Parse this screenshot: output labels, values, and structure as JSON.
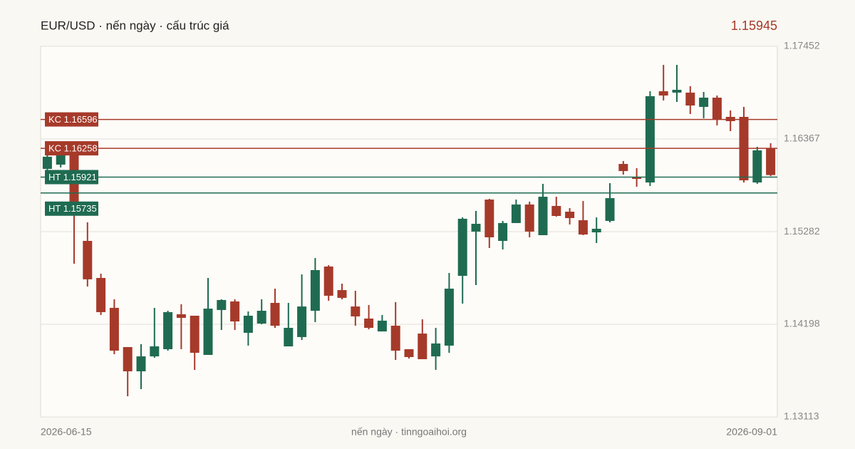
{
  "chart_data": {
    "type": "candlestick",
    "title": "EUR/USD · nến ngày · cấu trúc giá",
    "last_price": 1.15945,
    "last_price_color": "#a63a2a",
    "source": "nến ngày · tinngoaihoi.org",
    "categories": [
      "2026-06-15",
      null,
      null,
      null,
      null,
      null,
      null,
      null,
      null,
      null,
      null,
      null,
      null,
      null,
      null,
      null,
      null,
      null,
      null,
      null,
      null,
      null,
      null,
      null,
      null,
      null,
      null,
      null,
      null,
      null,
      null,
      null,
      null,
      null,
      null,
      null,
      null,
      null,
      null,
      null,
      null,
      null,
      null,
      null,
      null,
      null,
      null,
      null,
      null,
      null,
      null,
      null,
      null,
      null,
      "2026-09-01"
    ],
    "open": [
      1.16017,
      1.16067,
      1.16267,
      1.15174,
      1.1474,
      1.1439,
      1.13931,
      1.13647,
      1.13822,
      1.13906,
      1.14315,
      1.14298,
      1.13839,
      1.14365,
      1.14465,
      1.14098,
      1.14206,
      1.14448,
      1.13939,
      1.14048,
      1.14356,
      1.14874,
      1.14598,
      1.14406,
      1.14265,
      1.14114,
      1.14181,
      1.13906,
      1.14089,
      1.13822,
      1.13948,
      1.14765,
      1.15283,
      1.15658,
      1.15174,
      1.15383,
      1.156,
      1.15241,
      1.15583,
      1.15516,
      1.15416,
      1.15274,
      1.15408,
      1.16075,
      1.15925,
      1.15858,
      1.16926,
      1.1691,
      1.1691,
      1.16743,
      1.16851,
      1.16626,
      1.16626,
      1.15858,
      1.16259
    ],
    "high": [
      1.162,
      1.16326,
      1.16326,
      1.15391,
      1.1479,
      1.1449,
      1.13931,
      1.13964,
      1.1439,
      1.14356,
      1.14432,
      1.14298,
      1.1474,
      1.1449,
      1.1449,
      1.14348,
      1.1449,
      1.14615,
      1.14448,
      1.14782,
      1.14974,
      1.1489,
      1.14673,
      1.1459,
      1.14423,
      1.14306,
      1.14457,
      1.13906,
      1.14256,
      1.14156,
      1.14799,
      1.15449,
      1.15525,
      1.15666,
      1.15408,
      1.15658,
      1.15633,
      1.15842,
      1.15691,
      1.15558,
      1.15641,
      1.15449,
      1.1585,
      1.16109,
      1.16025,
      1.16926,
      1.17235,
      1.17235,
      1.16985,
      1.16918,
      1.16876,
      1.16701,
      1.16743,
      1.16276,
      1.16317
    ],
    "low": [
      1.15992,
      1.16034,
      1.14907,
      1.1464,
      1.14306,
      1.13847,
      1.13355,
      1.13439,
      1.13806,
      1.13889,
      1.13906,
      1.13664,
      1.13839,
      1.14131,
      1.14131,
      1.13948,
      1.14198,
      1.14156,
      1.13939,
      1.14014,
      1.14223,
      1.14473,
      1.1449,
      1.14181,
      1.14139,
      1.14114,
      1.13781,
      1.13797,
      1.13789,
      1.13664,
      1.13864,
      1.1444,
      1.14657,
      1.15091,
      1.15074,
      1.15383,
      1.15216,
      1.15241,
      1.15458,
      1.15366,
      1.15241,
      1.15149,
      1.15391,
      1.1595,
      1.15808,
      1.15817,
      1.16818,
      1.16801,
      1.16659,
      1.16609,
      1.16526,
      1.16459,
      1.15858,
      1.15842,
      1.15933
    ],
    "close": [
      1.16159,
      1.16267,
      1.15508,
      1.14724,
      1.1434,
      1.13889,
      1.13647,
      1.13822,
      1.13939,
      1.1434,
      1.14273,
      1.13864,
      1.14381,
      1.14482,
      1.14231,
      1.14298,
      1.14356,
      1.14181,
      1.14156,
      1.14406,
      1.14832,
      1.14532,
      1.14507,
      1.1429,
      1.14156,
      1.1424,
      1.13889,
      1.13814,
      1.13789,
      1.13973,
      1.14615,
      1.15433,
      1.15374,
      1.15216,
      1.15383,
      1.156,
      1.15283,
      1.15691,
      1.15466,
      1.15441,
      1.15249,
      1.15316,
      1.15675,
      1.15992,
      1.159,
      1.16868,
      1.16876,
      1.16943,
      1.16759,
      1.16851,
      1.16601,
      1.16576,
      1.15883,
      1.16234,
      1.15945
    ],
    "up_color": "#1f6b51",
    "down_color": "#a63a2a",
    "levels": [
      {
        "label": "KC 1.16596",
        "value": 1.16596,
        "color": "#a63a2a"
      },
      {
        "label": "KC 1.16258",
        "value": 1.16258,
        "color": "#a63a2a"
      },
      {
        "label": "HT 1.15921",
        "value": 1.15921,
        "color": "#1f6b51"
      },
      {
        "label": "HT 1.15735",
        "value": 1.15735,
        "color": "#1f6b51"
      }
    ],
    "ylim": [
      1.13113,
      1.17452
    ],
    "yticks": [
      1.13113,
      1.14198,
      1.15282,
      1.16367,
      1.17452
    ],
    "grid": true
  }
}
